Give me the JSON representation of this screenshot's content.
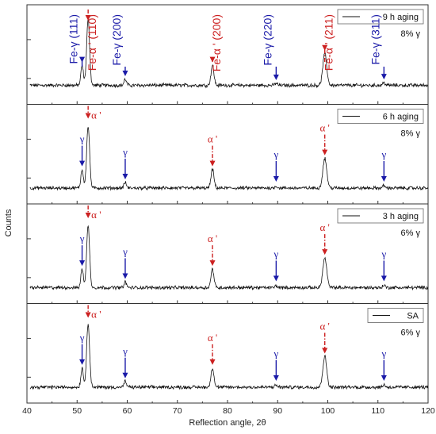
{
  "chart_data": {
    "type": "line",
    "xlabel": "Reflection angle, 2θ",
    "ylabel": "Counts",
    "xlim": [
      40,
      120
    ],
    "x_ticks": [
      40,
      50,
      60,
      70,
      80,
      90,
      100,
      110,
      120
    ],
    "grid": false,
    "legend_placement": "top-right",
    "colors": {
      "gamma": "#1a1aa8",
      "alpha": "#cc2020",
      "trace": "#111111"
    },
    "peaks": [
      {
        "phase": "gamma",
        "x": 51.0,
        "height": 0.3
      },
      {
        "phase": "alpha",
        "x": 52.2,
        "height": 1.0
      },
      {
        "phase": "gamma",
        "x": 59.6,
        "height": 0.09
      },
      {
        "phase": "alpha",
        "x": 77.0,
        "height": 0.3
      },
      {
        "phase": "gamma",
        "x": 89.7,
        "height": 0.03
      },
      {
        "phase": "alpha",
        "x": 99.4,
        "height": 0.48
      },
      {
        "phase": "gamma",
        "x": 111.2,
        "height": 0.04
      }
    ],
    "panels": [
      {
        "legend": "9 h aging",
        "fraction": "8% γ",
        "labels": [
          "Fe-γ (111)",
          "Fe-α ' (110)",
          "Fe-γ (200)",
          "Fe-α ' (200)",
          "Fe-γ (220)",
          "Fe-α ' (211)",
          "Fe-γ (311)"
        ]
      },
      {
        "legend": "6 h aging",
        "fraction": "8% γ",
        "labels": [
          "γ",
          "α '",
          "γ",
          "α '",
          "γ",
          "α '",
          "γ"
        ]
      },
      {
        "legend": "3 h aging",
        "fraction": "6% γ",
        "labels": [
          "γ",
          "α '",
          "γ",
          "α '",
          "γ",
          "α '",
          "γ"
        ]
      },
      {
        "legend": "SA",
        "fraction": "6% γ",
        "labels": [
          "γ",
          "α '",
          "γ",
          "α '",
          "γ",
          "α '",
          "γ"
        ]
      }
    ]
  }
}
